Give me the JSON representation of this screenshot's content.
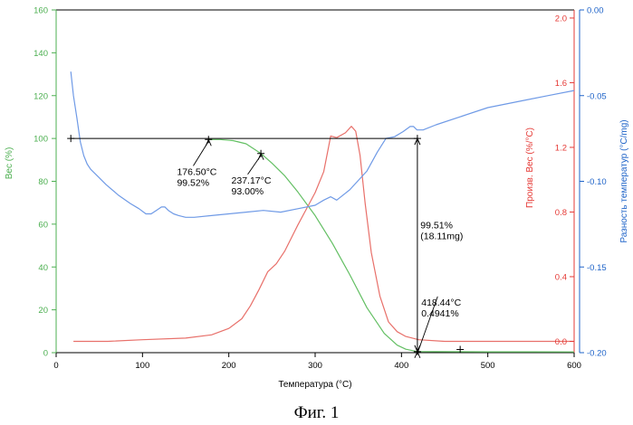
{
  "chart_data": {
    "type": "line",
    "xlabel": "Температура (°C)",
    "xlim": [
      0,
      600
    ],
    "xticks": [
      0,
      100,
      200,
      300,
      400,
      500,
      600
    ],
    "axes": {
      "left": {
        "label": "Вес (%)",
        "color": "#4caf50",
        "lim": [
          0,
          160
        ],
        "ticks": [
          0,
          20,
          40,
          60,
          80,
          100,
          120,
          140,
          160
        ],
        "tick_labels": [
          "0",
          "20",
          "40",
          "60",
          "80",
          "100",
          "120",
          "140",
          "160"
        ]
      },
      "right1": {
        "label": "Произв. Вес (%/°C)",
        "color": "#e53935",
        "lim": [
          -0.07,
          2.05
        ],
        "ticks": [
          0.0,
          0.4,
          0.8,
          1.2,
          1.6,
          2.0
        ],
        "tick_labels": [
          "0.0",
          "0.4",
          "0.8",
          "1.2",
          "1.6",
          "2.0"
        ]
      },
      "right2": {
        "label": "Разность температур (°C/mg)",
        "color": "#1e63c8",
        "lim": [
          -0.2,
          0.0
        ],
        "ticks": [
          -0.2,
          -0.15,
          -0.1,
          -0.05,
          0.0
        ],
        "tick_labels": [
          "-0.20",
          "-0.15",
          "-0.10",
          "-0.05",
          "0.00"
        ]
      }
    },
    "series": [
      {
        "axis": "left",
        "color": "#63bf63",
        "x": [
          176.5,
          190,
          205,
          220,
          237.17,
          250,
          265,
          280,
          300,
          320,
          340,
          360,
          380,
          395,
          405,
          418.44,
          440,
          470,
          500,
          550,
          600
        ],
        "y": [
          99.52,
          99.5,
          99.0,
          97.5,
          93.0,
          88.5,
          82.5,
          75.0,
          64.0,
          51.0,
          36.5,
          21.0,
          9.0,
          3.5,
          1.6,
          0.49,
          0.45,
          0.42,
          0.4,
          0.37,
          0.35
        ]
      },
      {
        "axis": "right1",
        "color": "#e8706a",
        "x": [
          20,
          60,
          100,
          150,
          180,
          200,
          215,
          225,
          235,
          245,
          255,
          265,
          280,
          290,
          300,
          310,
          318,
          325,
          335,
          342,
          347,
          352,
          358,
          365,
          375,
          385,
          395,
          405,
          420,
          450,
          500,
          550,
          600
        ],
        "y": [
          0.0,
          0.0,
          0.01,
          0.02,
          0.04,
          0.08,
          0.14,
          0.22,
          0.32,
          0.43,
          0.48,
          0.56,
          0.72,
          0.82,
          0.92,
          1.05,
          1.27,
          1.26,
          1.29,
          1.33,
          1.3,
          1.15,
          0.85,
          0.55,
          0.28,
          0.12,
          0.06,
          0.03,
          0.01,
          0.0,
          0.0,
          0.0,
          0.0
        ]
      },
      {
        "axis": "right2",
        "color": "#6f9ae6",
        "x": [
          17,
          20,
          24,
          28,
          32,
          36,
          40,
          48,
          58,
          72,
          86,
          96,
          104,
          110,
          116,
          122,
          126,
          130,
          136,
          142,
          150,
          160,
          180,
          200,
          220,
          240,
          260,
          280,
          300,
          310,
          318,
          325,
          340,
          360,
          372,
          382,
          392,
          402,
          410,
          414,
          418,
          425,
          440,
          470,
          500,
          540,
          570,
          600
        ],
        "y": [
          -0.036,
          -0.05,
          -0.063,
          -0.077,
          -0.085,
          -0.09,
          -0.093,
          -0.097,
          -0.102,
          -0.108,
          -0.113,
          -0.116,
          -0.119,
          -0.119,
          -0.117,
          -0.115,
          -0.115,
          -0.117,
          -0.119,
          -0.12,
          -0.121,
          -0.121,
          -0.12,
          -0.119,
          -0.118,
          -0.117,
          -0.118,
          -0.116,
          -0.114,
          -0.111,
          -0.109,
          -0.111,
          -0.105,
          -0.094,
          -0.083,
          -0.075,
          -0.074,
          -0.071,
          -0.068,
          -0.068,
          -0.07,
          -0.07,
          -0.067,
          -0.062,
          -0.057,
          -0.053,
          -0.05,
          -0.047
        ]
      }
    ],
    "hline": {
      "y": 100,
      "x_start": 17,
      "x_end": 418.44
    },
    "vline": {
      "x": 418.44,
      "y_top": 100,
      "y_bottom": 0.49
    },
    "markers": [
      {
        "x": 17,
        "y": 100
      },
      {
        "x": 176.5,
        "y": 99.52
      },
      {
        "x": 237.17,
        "y": 93.0
      },
      {
        "x": 418.44,
        "y": 100
      },
      {
        "x": 418.44,
        "y": 0.49
      },
      {
        "x": 468,
        "y": 1.5
      }
    ],
    "annotations": [
      {
        "id": "a1",
        "lines": [
          "176.50°C",
          "99.52%"
        ],
        "arrow_to": [
          176.5,
          99.52
        ],
        "text_at": [
          140,
          83
        ]
      },
      {
        "id": "a2",
        "lines": [
          "237.17°C",
          "93.00%"
        ],
        "arrow_to": [
          237.17,
          93.0
        ],
        "text_at": [
          203,
          79
        ]
      },
      {
        "id": "a3",
        "lines": [
          "99.51%",
          "(18.11mg)"
        ],
        "text_at": [
          422,
          58
        ]
      },
      {
        "id": "a4",
        "lines": [
          "418.44°C",
          "0.4941%"
        ],
        "arrow_to": [
          418.44,
          0.49
        ],
        "text_at": [
          423,
          22
        ]
      }
    ]
  },
  "caption": "Фиг. 1"
}
